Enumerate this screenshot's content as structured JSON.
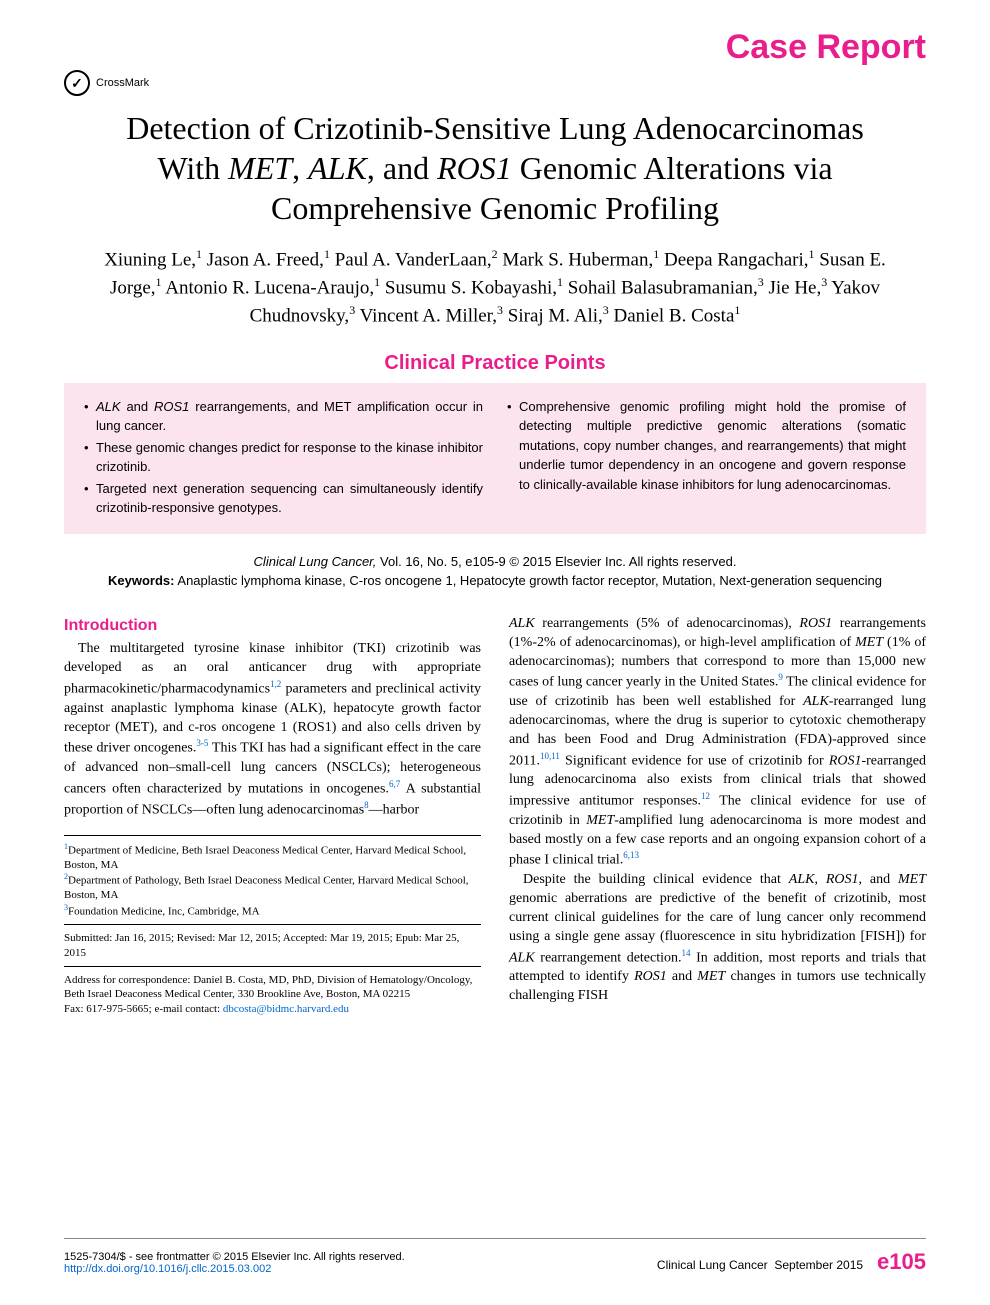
{
  "colors": {
    "accent": "#e91e8c",
    "box_bg": "#fce4ef",
    "link": "#0066cc",
    "text": "#000000",
    "page_bg": "#ffffff",
    "rule": "#888888"
  },
  "typography": {
    "serif": "Georgia, 'Times New Roman', serif",
    "sans": "Arial, Helvetica, sans-serif",
    "title_size_pt": 32,
    "author_size_pt": 19,
    "cpp_heading_size_pt": 20,
    "cpp_body_size_pt": 13,
    "body_size_pt": 14,
    "affil_size_pt": 11,
    "footer_size_pt": 11
  },
  "header": {
    "badge": "Case Report",
    "crossmark": "CrossMark"
  },
  "title_parts": {
    "a": "Detection of Crizotinib-Sensitive Lung Adenocarcinomas With ",
    "g1": "MET",
    "b": ", ",
    "g2": "ALK",
    "c": ", and ",
    "g3": "ROS1",
    "d": " Genomic Alterations via Comprehensive Genomic Profiling"
  },
  "authors_html": "Xiuning Le,<sup>1</sup> Jason A. Freed,<sup>1</sup> Paul A. VanderLaan,<sup>2</sup> Mark S. Huberman,<sup>1</sup> Deepa Rangachari,<sup>1</sup> Susan E. Jorge,<sup>1</sup> Antonio R. Lucena-Araujo,<sup>1</sup> Susumu S. Kobayashi,<sup>1</sup> Sohail Balasubramanian,<sup>3</sup> Jie He,<sup>3</sup> Yakov Chudnovsky,<sup>3</sup> Vincent A. Miller,<sup>3</sup> Siraj M. Ali,<sup>3</sup> Daniel B. Costa<sup>1</sup>",
  "cpp": {
    "heading": "Clinical Practice Points",
    "left": [
      "<span class=\"italic\">ALK</span> and <span class=\"italic\">ROS1</span> rearrangements, and MET amplification occur in lung cancer.",
      "These genomic changes predict for response to the kinase inhibitor crizotinib.",
      "Targeted next generation sequencing can simultaneously identify crizotinib-responsive genotypes."
    ],
    "right": [
      "Comprehensive genomic profiling might hold the promise of detecting multiple predictive genomic alterations (somatic mutations, copy number changes, and rearrangements) that might underlie tumor dependency in an oncogene and govern response to clinically-available kinase inhibitors for lung adenocarcinomas."
    ]
  },
  "citation": {
    "journal": "Clinical Lung Cancer,",
    "vol": " Vol. 16, No. 5, e105-9 © 2015 Elsevier Inc. All rights reserved.",
    "kw_label": "Keywords:",
    "kw": " Anaplastic lymphoma kinase, C-ros oncogene 1, Hepatocyte growth factor receptor, Mutation, Next-generation sequencing"
  },
  "body": {
    "intro_heading": "Introduction",
    "left_para": "The multitargeted tyrosine kinase inhibitor (TKI) crizotinib was developed as an oral anticancer drug with appropriate pharmacokinetic/pharmacodynamics<sup>1,2</sup> parameters and preclinical activity against anaplastic lymphoma kinase (ALK), hepatocyte growth factor receptor (MET), and c-ros oncogene 1 (ROS1) and also cells driven by these driver oncogenes.<sup>3-5</sup> This TKI has had a significant effect in the care of advanced non–small-cell lung cancers (NSCLCs); heterogeneous cancers often characterized by mutations in oncogenes.<sup>6,7</sup> A substantial proportion of NSCLCs—often lung adenocarcinomas<sup>8</sup>—harbor",
    "right_para1": "<span class=\"italic\">ALK</span> rearrangements (5% of adenocarcinomas), <span class=\"italic\">ROS1</span> rearrangements (1%-2% of adenocarcinomas), or high-level amplification of <span class=\"italic\">MET</span> (1% of adenocarcinomas); numbers that correspond to more than 15,000 new cases of lung cancer yearly in the United States.<sup>9</sup> The clinical evidence for use of crizotinib has been well established for <span class=\"italic\">ALK</span>-rearranged lung adenocarcinomas, where the drug is superior to cytotoxic chemotherapy and has been Food and Drug Administration (FDA)-approved since 2011.<sup>10,11</sup> Significant evidence for use of crizotinib for <span class=\"italic\">ROS1</span>-rearranged lung adenocarcinoma also exists from clinical trials that showed impressive antitumor responses.<sup>12</sup> The clinical evidence for use of crizotinib in <span class=\"italic\">MET</span>-amplified lung adenocarcinoma is more modest and based mostly on a few case reports and an ongoing expansion cohort of a phase I clinical trial.<sup>6,13</sup>",
    "right_para2": "Despite the building clinical evidence that <span class=\"italic\">ALK</span>, <span class=\"italic\">ROS1</span>, and <span class=\"italic\">MET</span> genomic aberrations are predictive of the benefit of crizotinib, most current clinical guidelines for the care of lung cancer only recommend using a single gene assay (fluorescence in situ hybridization [FISH]) for <span class=\"italic\">ALK</span> rearrangement detection.<sup>14</sup> In addition, most reports and trials that attempted to identify <span class=\"italic\">ROS1</span> and <span class=\"italic\">MET</span> changes in tumors use technically challenging FISH"
  },
  "affiliations": {
    "a1": "<sup>1</sup>Department of Medicine, Beth Israel Deaconess Medical Center, Harvard Medical School, Boston, MA",
    "a2": "<sup>2</sup>Department of Pathology, Beth Israel Deaconess Medical Center, Harvard Medical School, Boston, MA",
    "a3": "<sup>3</sup>Foundation Medicine, Inc, Cambridge, MA",
    "dates": "Submitted: Jan 16, 2015; Revised: Mar 12, 2015; Accepted: Mar 19, 2015; Epub: Mar 25, 2015",
    "corr": "Address for correspondence: Daniel B. Costa, MD, PhD, Division of Hematology/Oncology, Beth Israel Deaconess Medical Center, 330 Brookline Ave, Boston, MA 02215",
    "contact_prefix": "Fax: 617-975-5665; e-mail contact: ",
    "email": "dbcosta@bidmc.harvard.edu"
  },
  "footer": {
    "left_line1": "1525-7304/$ - see frontmatter © 2015 Elsevier Inc. All rights reserved.",
    "doi": "http://dx.doi.org/10.1016/j.cllc.2015.03.002",
    "journal": "Clinical Lung Cancer",
    "issue": "September 2015",
    "page": "e105"
  }
}
